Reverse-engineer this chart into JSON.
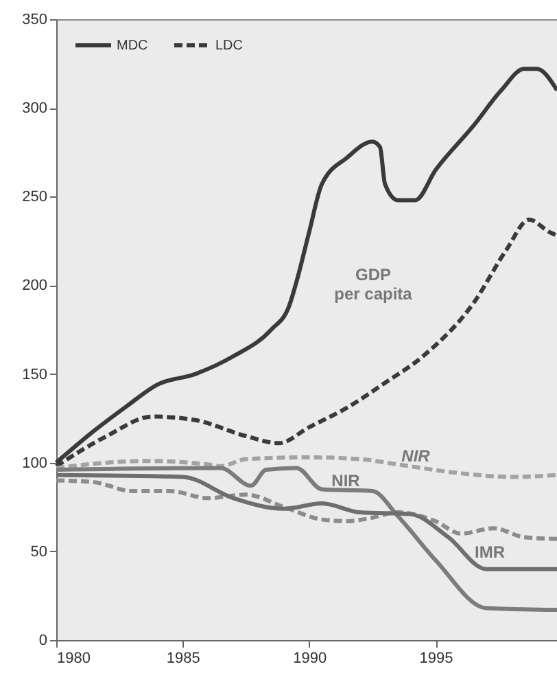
{
  "chart_data": {
    "type": "line",
    "xlim": [
      1980,
      1999.8
    ],
    "xticks": [
      1980,
      1985,
      1990,
      1995
    ],
    "ylim": [
      0,
      350
    ],
    "yticks": [
      0,
      50,
      100,
      150,
      200,
      250,
      300,
      350
    ],
    "grid": false,
    "series": [
      {
        "color": "#3a3a3a",
        "line_style": "solid",
        "x": [
          1980,
          1981.5,
          1982.8,
          1984,
          1985.5,
          1987,
          1988.5,
          1989.2,
          1989.5,
          1990,
          1990.5,
          1991.5,
          1992.5,
          1992.8,
          1993,
          1993.5,
          1994.2,
          1995,
          1996.5,
          1997.6,
          1998.5,
          1999,
          1999.8
        ],
        "values": [
          100,
          118,
          132,
          144,
          150,
          160,
          175,
          188,
          202,
          230,
          257,
          272,
          281,
          278,
          257,
          248,
          248,
          265,
          290,
          310,
          322,
          322,
          310
        ]
      },
      {
        "color": "#3a3a3a",
        "line_style": "dashed",
        "x": [
          1980,
          1982,
          1983.8,
          1985.5,
          1987.5,
          1988.8,
          1990,
          1991.5,
          1993,
          1994.5,
          1996.5,
          1997.8,
          1998.7,
          1999.5,
          1999.8
        ],
        "values": [
          98,
          115,
          126,
          124,
          115,
          111,
          120,
          131,
          145,
          160,
          190,
          220,
          237,
          230,
          228
        ]
      },
      {
        "color": "#a3a3a3",
        "line_style": "dashed",
        "x": [
          1980,
          1982,
          1983.5,
          1986,
          1986.5,
          1987.5,
          1990,
          1992,
          1993.5,
          1996,
          1998,
          1999.8
        ],
        "values": [
          97,
          100,
          101,
          99,
          98,
          102,
          103,
          102,
          99,
          94,
          92,
          93
        ]
      },
      {
        "color": "#8c8c8c",
        "line_style": "dashed",
        "x": [
          1980,
          1981.5,
          1983,
          1984.5,
          1986,
          1987.5,
          1989,
          1990.5,
          1991.5,
          1992.5,
          1993.5,
          1995,
          1996,
          1997.3,
          1998.5,
          1999.8
        ],
        "values": [
          90,
          89,
          84,
          84,
          80,
          82,
          75,
          68,
          67,
          69,
          72,
          67,
          60,
          63,
          58,
          57
        ]
      },
      {
        "color": "#7c7c7c",
        "line_style": "solid",
        "x": [
          1980,
          1986.5,
          1987.7,
          1988.3,
          1989.5,
          1990.5,
          1992.5,
          1993.5,
          1995,
          1997,
          1999.8
        ],
        "values": [
          96,
          97,
          87,
          96,
          97,
          85,
          84,
          70,
          45,
          18,
          17
        ]
      },
      {
        "color": "#6e6e6e",
        "line_style": "solid",
        "x": [
          1980,
          1985,
          1987,
          1989,
          1990.5,
          1992,
          1994,
          1995.5,
          1997,
          1999.8
        ],
        "values": [
          93,
          92,
          80,
          74,
          77,
          72,
          71,
          58,
          40,
          40
        ]
      }
    ],
    "annotations": [
      "MDC",
      "LDC",
      "GDP\nper capita",
      "NIR",
      "NIR",
      "IMR"
    ]
  }
}
